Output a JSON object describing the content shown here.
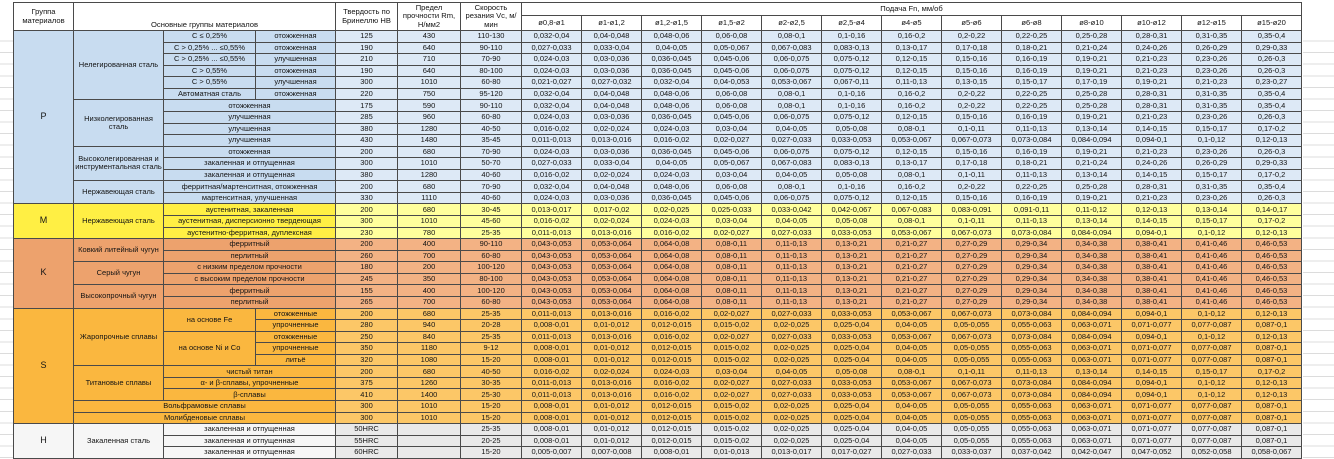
{
  "header": {
    "group": "Группа материалов",
    "main_groups": "Основные группы материалов",
    "hardness": "Твердость по Бринеллю HB",
    "strength": "Предел прочности Rm, Н/мм2",
    "speed": "Скорость резания Vc, м/мин",
    "feed": "Подача Fn, мм/об",
    "diameters": [
      "ø0,8-ø1",
      "ø1-ø1,2",
      "ø1,2-ø1,5",
      "ø1,5-ø2",
      "ø2-ø2,5",
      "ø2,5-ø4",
      "ø4-ø5",
      "ø5-ø6",
      "ø6-ø8",
      "ø8-ø10",
      "ø10-ø12",
      "ø12-ø15",
      "ø15-ø20"
    ],
    "background": "#ffffff",
    "border_color": "#4a4a4a"
  },
  "feed_patterns": {
    "A": [
      "0,032-0,04",
      "0,04-0,048",
      "0,048-0,06",
      "0,06-0,08",
      "0,08-0,1",
      "0,1-0,16",
      "0,16-0,2",
      "0,2-0,22",
      "0,22-0,25",
      "0,25-0,28",
      "0,28-0,31",
      "0,31-0,35",
      "0,35-0,4"
    ],
    "B": [
      "0,027-0,033",
      "0,033-0,04",
      "0,04-0,05",
      "0,05-0,067",
      "0,067-0,083",
      "0,083-0,13",
      "0,13-0,17",
      "0,17-0,18",
      "0,18-0,21",
      "0,21-0,24",
      "0,24-0,26",
      "0,26-0,29",
      "0,29-0,33"
    ],
    "C": [
      "0,024-0,03",
      "0,03-0,036",
      "0,036-0,045",
      "0,045-0,06",
      "0,06-0,075",
      "0,075-0,12",
      "0,12-0,15",
      "0,15-0,16",
      "0,16-0,19",
      "0,19-0,21",
      "0,21-0,23",
      "0,23-0,26",
      "0,26-0,3"
    ],
    "D": [
      "0,021-0,027",
      "0,027-0,032",
      "0,032-0,04",
      "0,04-0,053",
      "0,053-0,067",
      "0,067-0,11",
      "0,11-0,13",
      "0,13-0,15",
      "0,15-0,17",
      "0,17-0,19",
      "0,19-0,21",
      "0,21-0,23",
      "0,23-0,27"
    ],
    "E": [
      "0,016-0,02",
      "0,02-0,024",
      "0,024-0,03",
      "0,03-0,04",
      "0,04-0,05",
      "0,05-0,08",
      "0,08-0,1",
      "0,1-0,11",
      "0,11-0,13",
      "0,13-0,14",
      "0,14-0,15",
      "0,15-0,17",
      "0,17-0,2"
    ],
    "F": [
      "0,011-0,013",
      "0,013-0,016",
      "0,016-0,02",
      "0,02-0,027",
      "0,027-0,033",
      "0,033-0,053",
      "0,053-0,067",
      "0,067-0,073",
      "0,073-0,084",
      "0,084-0,094",
      "0,094-0,1",
      "0,1-0,12",
      "0,12-0,13"
    ],
    "G": [
      "0,013-0,017",
      "0,017-0,02",
      "0,02-0,025",
      "0,025-0,033",
      "0,033-0,042",
      "0,042-0,067",
      "0,067-0,083",
      "0,083-0,091",
      "0,091-0,11",
      "0,11-0,12",
      "0,12-0,13",
      "0,13-0,14",
      "0,14-0,17"
    ],
    "H": [
      "0,043-0,053",
      "0,053-0,064",
      "0,064-0,08",
      "0,08-0,11",
      "0,11-0,13",
      "0,13-0,21",
      "0,21-0,27",
      "0,27-0,29",
      "0,29-0,34",
      "0,34-0,38",
      "0,38-0,41",
      "0,41-0,46",
      "0,46-0,53"
    ],
    "I": [
      "0,008-0,01",
      "0,01-0,012",
      "0,012-0,015",
      "0,015-0,02",
      "0,02-0,025",
      "0,025-0,04",
      "0,04-0,05",
      "0,05-0,055",
      "0,055-0,063",
      "0,063-0,071",
      "0,071-0,077",
      "0,077-0,087",
      "0,087-0,1"
    ],
    "J": [
      "0,005-0,007",
      "0,007-0,008",
      "0,008-0,01",
      "0,01-0,013",
      "0,013-0,017",
      "0,017-0,027",
      "0,027-0,033",
      "0,033-0,037",
      "0,037-0,042",
      "0,042-0,047",
      "0,047-0,052",
      "0,052-0,058",
      "0,058-0,067"
    ]
  },
  "material_groups": [
    {
      "code": "P",
      "colors": {
        "left": "#c8dcf0",
        "data": "#dde9f6"
      },
      "families": [
        {
          "name": "Нелегированная сталь",
          "rows": [
            {
              "sub1": "C ≤ 0,25%",
              "sub2": "отожженная",
              "hb": "125",
              "rm": "430",
              "vc": "110-130",
              "feeds": "A"
            },
            {
              "sub1": "C > 0,25% ... ≤0,55%",
              "sub2": "отожженная",
              "hb": "190",
              "rm": "640",
              "vc": "90-110",
              "feeds": "B"
            },
            {
              "sub1": "C > 0,25% ... ≤0,55%",
              "sub2": "улучшенная",
              "hb": "210",
              "rm": "710",
              "vc": "70-90",
              "feeds": "C"
            },
            {
              "sub1": "C > 0,55%",
              "sub2": "отожженная",
              "hb": "190",
              "rm": "640",
              "vc": "80-100",
              "feeds": "C"
            },
            {
              "sub1": "C > 0,55%",
              "sub2": "улучшенная",
              "hb": "300",
              "rm": "1010",
              "vc": "60-80",
              "feeds": "D"
            },
            {
              "sub1": "Автоматная сталь",
              "sub2": "отожженная",
              "hb": "220",
              "rm": "750",
              "vc": "95-120",
              "feeds": "A"
            }
          ]
        },
        {
          "name": "Низколегированная сталь",
          "rows": [
            {
              "sub": "отожженная",
              "hb": "175",
              "rm": "590",
              "vc": "90-110",
              "feeds": "A"
            },
            {
              "sub": "улучшенная",
              "hb": "285",
              "rm": "960",
              "vc": "60-80",
              "feeds": "C"
            },
            {
              "sub": "улучшенная",
              "hb": "380",
              "rm": "1280",
              "vc": "40-50",
              "feeds": "E"
            },
            {
              "sub": "улучшенная",
              "hb": "430",
              "rm": "1480",
              "vc": "35-45",
              "feeds": "F"
            }
          ]
        },
        {
          "name": "Высоколегированная и инструментальная сталь",
          "rows": [
            {
              "sub": "отожженная",
              "hb": "200",
              "rm": "680",
              "vc": "70-90",
              "feeds": "C"
            },
            {
              "sub": "закаленная и отпущенная",
              "hb": "300",
              "rm": "1010",
              "vc": "50-70",
              "feeds": "B"
            },
            {
              "sub": "закаленная и отпущенная",
              "hb": "380",
              "rm": "1280",
              "vc": "40-60",
              "feeds": "E"
            }
          ]
        },
        {
          "name": "Нержавеющая сталь",
          "rows": [
            {
              "sub": "ферритная/мартенситная, отожженная",
              "hb": "200",
              "rm": "680",
              "vc": "70-90",
              "feeds": "A"
            },
            {
              "sub": "мартенситная, улучшенная",
              "hb": "330",
              "rm": "1110",
              "vc": "40-60",
              "feeds": "C"
            }
          ]
        }
      ]
    },
    {
      "code": "M",
      "colors": {
        "left": "#ffef44",
        "data": "#ffff9c"
      },
      "families": [
        {
          "name": "Нержавеющая сталь",
          "rows": [
            {
              "sub": "аустенитная, закаленная",
              "hb": "200",
              "rm": "680",
              "vc": "30-45",
              "feeds": "G"
            },
            {
              "sub": "аустенитная, дисперсионно твердеющая",
              "hb": "300",
              "rm": "1010",
              "vc": "45-60",
              "feeds": "E"
            },
            {
              "sub": "аустенитно-ферритная, дуплексная",
              "hb": "230",
              "rm": "780",
              "vc": "25-35",
              "feeds": "F"
            }
          ]
        }
      ]
    },
    {
      "code": "K",
      "colors": {
        "left": "#eda26d",
        "data": "#f3b284"
      },
      "families": [
        {
          "name": "Ковкий литейный чугун",
          "rows": [
            {
              "sub": "ферритный",
              "hb": "200",
              "rm": "400",
              "vc": "90-110",
              "feeds": "H"
            },
            {
              "sub": "перлитный",
              "hb": "260",
              "rm": "700",
              "vc": "60-80",
              "feeds": "H"
            }
          ]
        },
        {
          "name": "Серый чугун",
          "rows": [
            {
              "sub": "с низким пределом прочности",
              "hb": "180",
              "rm": "200",
              "vc": "100-120",
              "feeds": "H"
            },
            {
              "sub": "с высоким пределом прочности",
              "hb": "245",
              "rm": "350",
              "vc": "80-100",
              "feeds": "H"
            }
          ]
        },
        {
          "name": "Высокопрочный чугун",
          "rows": [
            {
              "sub": "ферритный",
              "hb": "155",
              "rm": "400",
              "vc": "100-120",
              "feeds": "H"
            },
            {
              "sub": "перлитный",
              "hb": "265",
              "rm": "700",
              "vc": "60-80",
              "feeds": "H"
            }
          ]
        }
      ]
    },
    {
      "code": "S",
      "colors": {
        "left": "#fab73f",
        "data": "#fcc767"
      },
      "families": [
        {
          "name": "Жаропрочные сплавы",
          "rows": [
            {
              "sub1": "на основе Fe",
              "sub1_rows": 2,
              "sub2": "отожженные",
              "hb": "200",
              "rm": "680",
              "vc": "25-35",
              "feeds": "F"
            },
            {
              "sub2": "упрочненные",
              "hb": "280",
              "rm": "940",
              "vc": "20-28",
              "feeds": "I"
            },
            {
              "sub1": "на основе Ni и Co",
              "sub1_rows": 3,
              "sub2": "отожженные",
              "hb": "250",
              "rm": "840",
              "vc": "25-35",
              "feeds": "F"
            },
            {
              "sub2": "упрочненные",
              "hb": "350",
              "rm": "1180",
              "vc": "9-12",
              "feeds": "I"
            },
            {
              "sub2": "литьё",
              "hb": "320",
              "rm": "1080",
              "vc": "15-20",
              "feeds": "I"
            }
          ]
        },
        {
          "name": "Титановые сплавы",
          "rows": [
            {
              "sub": "чистый титан",
              "hb": "200",
              "rm": "680",
              "vc": "40-50",
              "feeds": "E"
            },
            {
              "sub": "α- и β-сплавы, упрочненные",
              "hb": "375",
              "rm": "1260",
              "vc": "30-35",
              "feeds": "F"
            },
            {
              "sub": "β-сплавы",
              "hb": "410",
              "rm": "1400",
              "vc": "25-30",
              "feeds": "F"
            }
          ]
        },
        {
          "name": "Вольфрамовые сплавы",
          "span_all": true,
          "rows": [
            {
              "hb": "300",
              "rm": "1010",
              "vc": "15-20",
              "feeds": "I"
            }
          ]
        },
        {
          "name": "Молибденовые сплавы",
          "span_all": true,
          "rows": [
            {
              "hb": "300",
              "rm": "1010",
              "vc": "15-20",
              "feeds": "I"
            }
          ]
        }
      ]
    },
    {
      "code": "H",
      "colors": {
        "left": "#f6f6f6",
        "data": "#e9e9e9"
      },
      "families": [
        {
          "name": "Закаленная сталь",
          "rows": [
            {
              "sub": "закаленная и отпущенная",
              "hb": "50HRC",
              "rm": "",
              "vc": "25-35",
              "feeds": "I"
            },
            {
              "sub": "закаленная и отпущенная",
              "hb": "55HRC",
              "rm": "",
              "vc": "20-25",
              "feeds": "I"
            },
            {
              "sub": "закаленная и отпущенная",
              "hb": "60HRC",
              "rm": "",
              "vc": "15-20",
              "feeds": "J"
            }
          ]
        }
      ]
    }
  ]
}
